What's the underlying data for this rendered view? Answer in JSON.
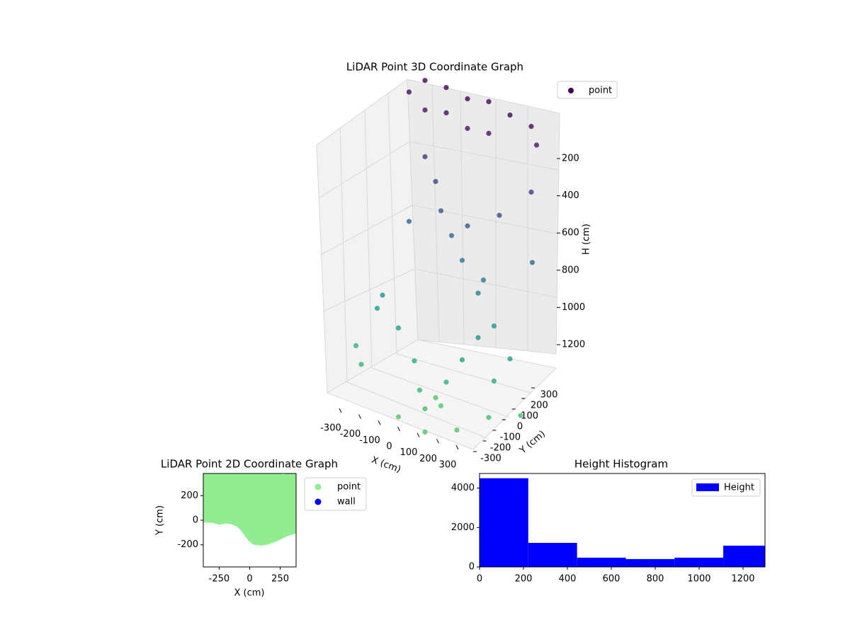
{
  "chart_data": [
    {
      "type": "scatter3d",
      "title": "LiDAR Point 3D Coordinate Graph",
      "xlabel": "X (cm)",
      "ylabel": "Y (cm)",
      "zlabel": "H (cm)",
      "legend": "point",
      "colormap": "viridis",
      "clim": [
        0,
        1800
      ],
      "legend_loc": "upper right",
      "x": [
        -200,
        -100,
        0,
        100,
        200,
        300,
        350,
        -250,
        -150,
        -50,
        50,
        150,
        -150,
        -100,
        -50,
        0,
        50,
        100,
        150,
        -200,
        200,
        250,
        350,
        380,
        -250,
        -150,
        -50,
        0,
        50,
        100,
        150,
        200,
        250,
        300,
        350,
        -300,
        -350,
        -300,
        0,
        50,
        -50,
        100,
        200,
        300,
        400
      ],
      "y": [
        300,
        300,
        300,
        300,
        300,
        300,
        250,
        250,
        200,
        200,
        200,
        200,
        200,
        200,
        150,
        150,
        150,
        100,
        100,
        150,
        50,
        100,
        200,
        150,
        0,
        -50,
        -100,
        -150,
        -200,
        -100,
        -50,
        0,
        50,
        -50,
        0,
        -100,
        -50,
        50,
        0,
        -50,
        -250,
        -300,
        -200,
        -100,
        0
      ],
      "h": [
        0,
        0,
        20,
        0,
        30,
        50,
        100,
        50,
        80,
        60,
        100,
        90,
        300,
        400,
        500,
        600,
        700,
        500,
        800,
        600,
        700,
        400,
        300,
        600,
        900,
        1000,
        1100,
        1200,
        1250,
        1150,
        1050,
        950,
        900,
        1100,
        1000,
        1200,
        1150,
        1000,
        1300,
        1300,
        1300,
        1300,
        1300,
        1250,
        1250
      ],
      "xticks": [
        -300,
        -200,
        -100,
        0,
        100,
        200,
        300
      ],
      "yticks": [
        -300,
        -200,
        -100,
        0,
        100,
        200,
        300
      ],
      "zticks": [
        200,
        400,
        600,
        800,
        1000,
        1200
      ]
    },
    {
      "type": "scatter",
      "title": "LiDAR Point 2D Coordinate Graph",
      "xlabel": "X (cm)",
      "ylabel": "Y (cm)",
      "xlim": [
        -380,
        380
      ],
      "ylim": [
        -380,
        380
      ],
      "xticks": [
        -250,
        0,
        250
      ],
      "yticks": [
        -200,
        0,
        200
      ],
      "legend_loc": "outside right",
      "series": [
        {
          "name": "point",
          "color": "#90ee90",
          "x": [
            -380,
            250,
            265,
            290,
            380,
            380,
            330,
            280,
            220,
            150,
            100,
            40,
            0,
            -30,
            -60,
            -100,
            -150,
            -200,
            -250,
            -300,
            -380
          ],
          "y": [
            380,
            380,
            355,
            365,
            380,
            -95,
            -110,
            -130,
            -160,
            -185,
            -195,
            -190,
            -160,
            -120,
            -80,
            -40,
            -20,
            -15,
            -25,
            -10,
            -5
          ]
        },
        {
          "name": "wall",
          "color": "#0000ff"
        }
      ]
    },
    {
      "type": "histogram",
      "title": "Height Histogram",
      "legend": "Height",
      "color": "#0000ff",
      "legend_loc": "upper right",
      "bins": [
        0,
        222,
        444,
        666,
        888,
        1110,
        1332
      ],
      "counts": [
        4500,
        1220,
        470,
        400,
        470,
        1080
      ],
      "xlim": [
        0,
        1300
      ],
      "ylim": [
        0,
        4740
      ],
      "xticks": [
        0,
        200,
        400,
        600,
        800,
        1000,
        1200
      ],
      "yticks": [
        0,
        2000,
        4000
      ]
    }
  ]
}
